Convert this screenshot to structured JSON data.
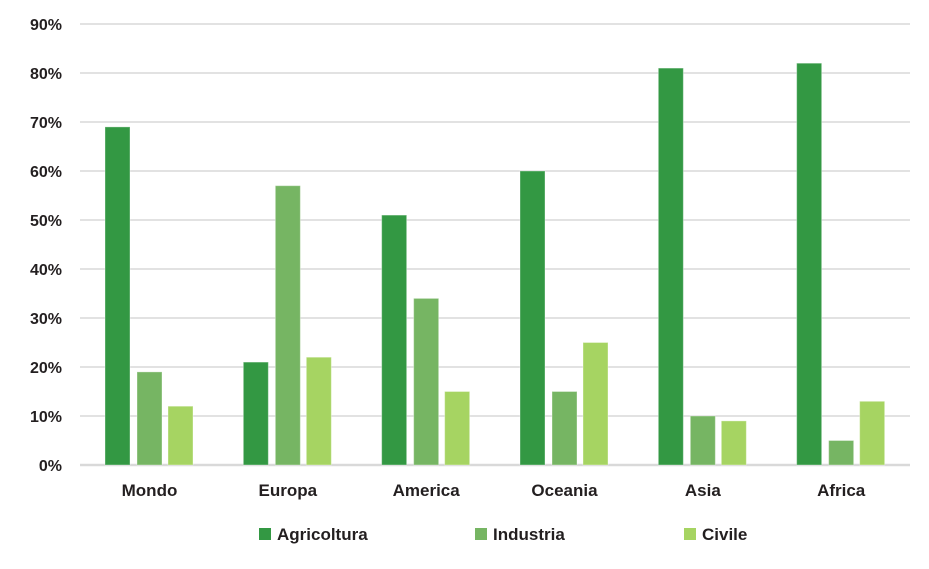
{
  "chart_data": {
    "type": "bar",
    "title": "",
    "xlabel": "",
    "ylabel": "",
    "ylim": [
      0,
      90
    ],
    "yticks": [
      0,
      10,
      20,
      30,
      40,
      50,
      60,
      70,
      80,
      90
    ],
    "ytick_labels": [
      "0%",
      "10%",
      "20%",
      "30%",
      "40%",
      "50%",
      "60%",
      "70%",
      "80%",
      "90%"
    ],
    "grid": true,
    "legend_position": "bottom",
    "categories": [
      "Mondo",
      "Europa",
      "America",
      "Oceania",
      "Asia",
      "Africa"
    ],
    "series": [
      {
        "name": "Agricoltura",
        "color": "#339843",
        "values": [
          69,
          21,
          51,
          60,
          81,
          82
        ]
      },
      {
        "name": "Industria",
        "color": "#76b563",
        "values": [
          19,
          57,
          34,
          15,
          10,
          5
        ]
      },
      {
        "name": "Civile",
        "color": "#a6d462",
        "values": [
          12,
          22,
          15,
          25,
          9,
          13
        ]
      }
    ]
  }
}
